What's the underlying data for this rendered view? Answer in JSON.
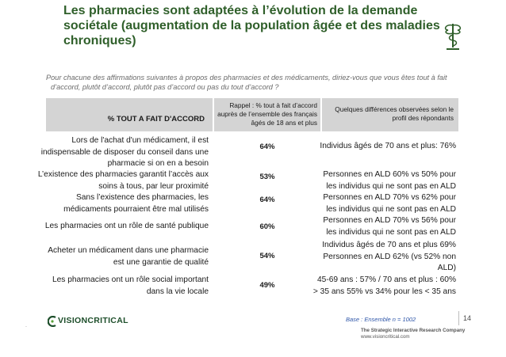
{
  "title_lines": [
    "Les pharmacies sont adaptées à l’évolution de la demande",
    "sociétale (augmentation de la population âgée et des maladies",
    "chroniques)"
  ],
  "subtitle_lines": [
    "Pour chacune des affirmations suivantes à propos des pharmacies et des médicaments, diriez-vous que vous êtes tout à fait",
    "d’accord, plutôt d’accord, plutôt pas d’accord ou pas du tout d’accord ?"
  ],
  "table": {
    "header_col1": "% TOUT A FAIT D'ACCORD",
    "header_col2_lines": [
      "Rappel : % tout à fait d’accord",
      "auprès de l’ensemble des français",
      "âgés de 18 ans et plus"
    ],
    "header_col3_lines": [
      "Quelques différences observées selon le",
      "profil des répondants"
    ],
    "rows": [
      {
        "label_lines": [
          "Lors de l'achat d'un médicament, il est",
          "indispensable de disposer du conseil dans une",
          "pharmacie si on en a besoin"
        ],
        "pct": "64%",
        "diff_lines": [
          "Individus âgés de 70 ans et plus: 76%"
        ]
      },
      {
        "label_lines": [
          "L’existence des pharmacies garantit l’accès aux",
          "soins à tous, par leur proximité"
        ],
        "pct": "53%",
        "diff_lines": [
          "Personnes en ALD 60% vs 50% pour",
          "les individus qui ne sont pas en ALD"
        ]
      },
      {
        "label_lines": [
          "Sans l’existence des pharmacies, les",
          "médicaments pourraient être mal utilisés"
        ],
        "pct": "64%",
        "diff_lines": [
          "Personnes en ALD 70% vs 62% pour",
          "les individus qui ne sont pas en ALD"
        ]
      },
      {
        "label_lines": [
          "Les pharmacies ont un rôle de santé publique"
        ],
        "pct": "60%",
        "diff_lines": [
          "Personnes en ALD 70% vs 56% pour",
          "les individus qui ne sont pas en ALD"
        ]
      },
      {
        "label_lines": [
          "Acheter un médicament dans une pharmacie",
          "est une garantie de qualité"
        ],
        "pct": "54%",
        "diff_lines": [
          "Individus âgés de 70 ans et plus 69%",
          "Personnes en ALD 62% (vs 52% non",
          "ALD)"
        ]
      },
      {
        "label_lines": [
          "Les pharmacies ont un rôle social important",
          "dans la vie locale"
        ],
        "pct": "49%",
        "diff_lines": [
          "45-69 ans : 57% / 70 ans et plus : 60%",
          "> 35 ans 55% vs 34% pour les < 35 ans"
        ]
      }
    ]
  },
  "base_note": "Base :  Ensemble n = 1002",
  "page_number": "14",
  "brand_name": "VISIONCRITICAL",
  "footer_lines": [
    "The Strategic Interactive Research Company",
    "www.visioncritical.com"
  ],
  "colors": {
    "title": "#2f5f2a",
    "header_bg": "#d4d4d4",
    "base_note": "#2d55a8",
    "brand": "#1d4e2a"
  }
}
